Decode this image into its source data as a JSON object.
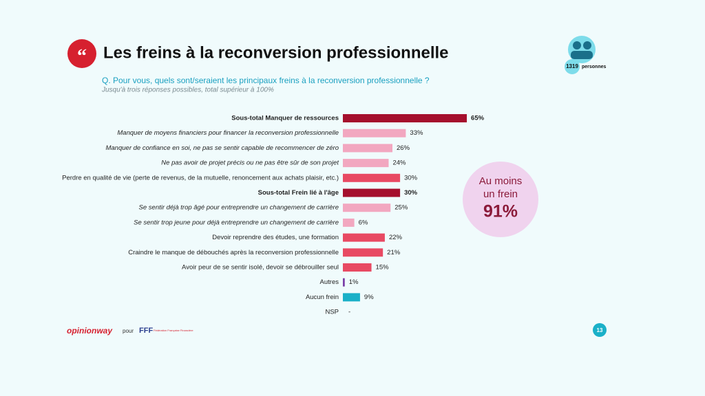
{
  "header": {
    "title": "Les freins à la reconversion professionnelle",
    "question": "Q. Pour vous, quels sont/seraient les principaux freins à la reconversion professionnelle ?",
    "note": "Jusqu'à trois réponses possibles, total supérieur à 100%"
  },
  "badge": {
    "count": "1319",
    "unit": "personnes"
  },
  "callout": {
    "line1": "Au moins",
    "line2": "un frein",
    "value": "91%"
  },
  "footer": {
    "brand": "opinionway",
    "for": "pour",
    "partner": "FFF",
    "partner_name": "Fédération Française Financière",
    "page": "13"
  },
  "chart_data": {
    "type": "hbar",
    "categories": [
      "Sous-total Manquer de ressources",
      "Manquer de moyens financiers pour financer la reconversion professionnelle",
      "Manquer de confiance en soi, ne pas se sentir capable de recommencer de zéro",
      "Ne pas avoir de projet précis ou ne pas être sûr de son projet",
      "Perdre en qualité de vie (perte de revenus, de la mutuelle, renoncement aux achats plaisir, etc.)",
      "Sous-total Frein lié à l'âge",
      "Se sentir déjà trop âgé pour entreprendre un changement de carrière",
      "Se sentir trop jeune pour déjà entreprendre un changement de carrière",
      "Devoir reprendre des études, une formation",
      "Craindre le manque de débouchés après la reconversion professionnelle",
      "Avoir peur de se sentir isolé, devoir se débrouiller seul",
      "Autres",
      "Aucun frein",
      "NSP"
    ],
    "values": [
      65,
      33,
      26,
      24,
      30,
      30,
      25,
      6,
      22,
      21,
      15,
      1,
      9,
      null
    ],
    "value_labels": [
      "65%",
      "33%",
      "26%",
      "24%",
      "30%",
      "30%",
      "25%",
      "6%",
      "22%",
      "21%",
      "15%",
      "1%",
      "9%",
      "-"
    ],
    "colors": [
      "#a50f2d",
      "#f2a7c0",
      "#f2a7c0",
      "#f2a7c0",
      "#e84a63",
      "#a50f2d",
      "#f2a7c0",
      "#f2a7c0",
      "#e84a63",
      "#e84a63",
      "#e84a63",
      "#7b3fa8",
      "#1ab0c8",
      "#1ab0c8"
    ],
    "label_styles": [
      "bold",
      "italic",
      "italic",
      "italic",
      "normal",
      "bold",
      "italic",
      "italic",
      "normal",
      "normal",
      "normal",
      "normal",
      "normal",
      "normal"
    ]
  }
}
